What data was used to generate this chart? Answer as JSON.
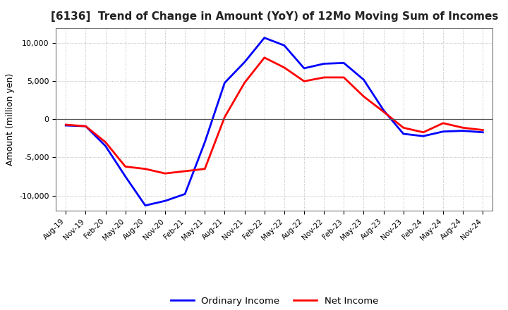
{
  "title": "[6136]  Trend of Change in Amount (YoY) of 12Mo Moving Sum of Incomes",
  "ylabel": "Amount (million yen)",
  "x_labels": [
    "Aug-19",
    "Nov-19",
    "Feb-20",
    "May-20",
    "Aug-20",
    "Nov-20",
    "Feb-21",
    "May-21",
    "Aug-21",
    "Nov-21",
    "Feb-22",
    "May-22",
    "Aug-22",
    "Nov-22",
    "Feb-23",
    "May-23",
    "Aug-23",
    "Nov-23",
    "Feb-24",
    "May-24",
    "Aug-24",
    "Nov-24"
  ],
  "ordinary_income": [
    -800,
    -900,
    -3500,
    -7500,
    -11300,
    -10700,
    -9800,
    -3000,
    4800,
    7500,
    10700,
    9700,
    6700,
    7300,
    7400,
    5200,
    1200,
    -1900,
    -2200,
    -1600,
    -1500,
    -1700
  ],
  "net_income": [
    -700,
    -900,
    -3000,
    -6200,
    -6500,
    -7100,
    -6800,
    -6500,
    300,
    4800,
    8100,
    6800,
    5000,
    5500,
    5500,
    3000,
    1000,
    -1100,
    -1700,
    -500,
    -1100,
    -1400
  ],
  "ordinary_color": "#0000FF",
  "net_color": "#FF0000",
  "background_color": "#FFFFFF",
  "grid_color": "#AAAAAA",
  "ylim": [
    -12000,
    12000
  ],
  "yticks": [
    -10000,
    -5000,
    0,
    5000,
    10000
  ],
  "legend_labels": [
    "Ordinary Income",
    "Net Income"
  ]
}
